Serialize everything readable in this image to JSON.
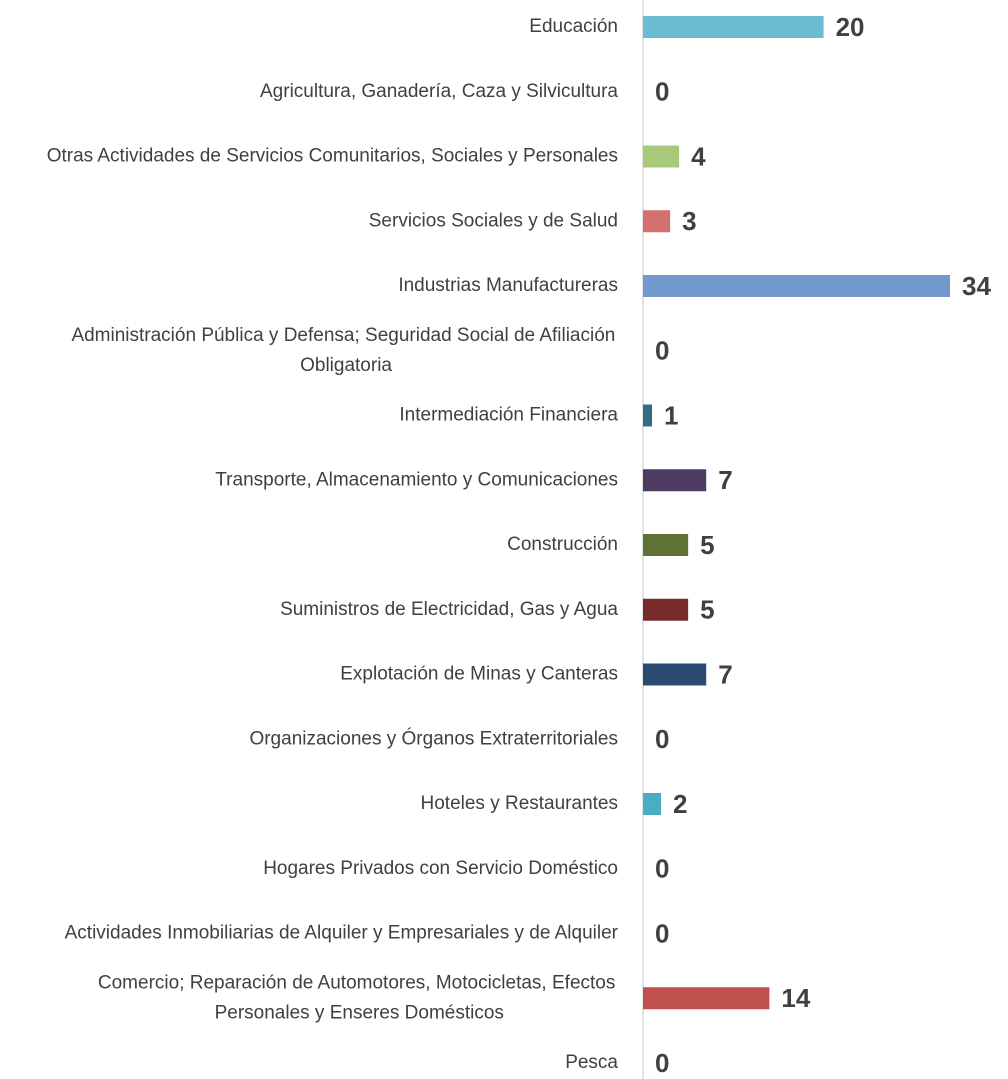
{
  "chart_data": {
    "type": "bar",
    "orientation": "horizontal",
    "categories": [
      "Educación",
      "Agricultura, Ganadería, Caza y Silvicultura",
      "Otras Actividades de Servicios Comunitarios, Sociales y Personales",
      "Servicios Sociales y de Salud",
      "Industrias Manufactureras",
      "Administración Pública y Defensa; Seguridad Social de Afiliación Obligatoria",
      "Intermediación Financiera",
      "Transporte, Almacenamiento y Comunicaciones",
      "Construcción",
      "Suministros de Electricidad, Gas y Agua",
      "Explotación de Minas y Canteras",
      "Organizaciones y Órganos Extraterritoriales",
      "Hoteles y Restaurantes",
      "Hogares Privados con Servicio Doméstico",
      "Actividades Inmobiliarias de Alquiler y Empresariales y de Alquiler",
      "Comercio; Reparación de Automotores, Motocicletas, Efectos Personales y Enseres Domésticos",
      "Pesca"
    ],
    "values": [
      20,
      0,
      4,
      3,
      34,
      0,
      1,
      7,
      5,
      5,
      7,
      0,
      2,
      0,
      0,
      14,
      0
    ],
    "colors": [
      "#6bbcd1",
      "#8064a2",
      "#a9c97a",
      "#d4706e",
      "#7399cc",
      "#f79646",
      "#2e6f82",
      "#4d3b62",
      "#5e7333",
      "#772c2a",
      "#2b4a72",
      "#4f81bd",
      "#4bacc6",
      "#9bbb59",
      "#c0504d",
      "#c0504d",
      "#1f497d"
    ]
  }
}
